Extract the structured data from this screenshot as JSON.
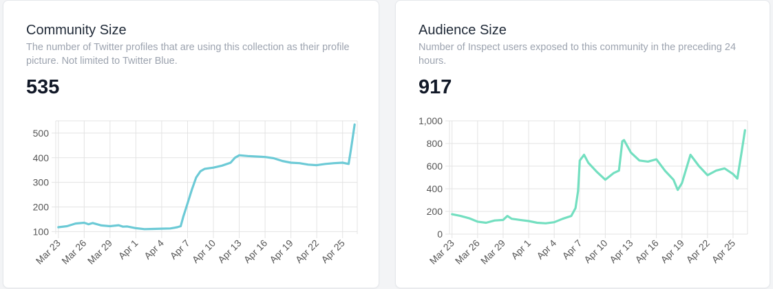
{
  "cards": [
    {
      "title": "Community Size",
      "subtitle": "The number of Twitter profiles that are using this collection as their profile picture. Not limited to Twitter Blue.",
      "value": "535"
    },
    {
      "title": "Audience Size",
      "subtitle": "Number of Inspect users exposed to this community in the preceding 24 hours.",
      "value": "917"
    }
  ],
  "chart_data": [
    {
      "type": "line",
      "title": "Community Size",
      "color": "#6ccad6",
      "xlabel": "",
      "ylabel": "",
      "x_ticks": [
        "Mar 23",
        "Mar 26",
        "Mar 29",
        "Apr 1",
        "Apr 4",
        "Apr 7",
        "Apr 10",
        "Apr 13",
        "Apr 16",
        "Apr 19",
        "Apr 22",
        "Apr 25"
      ],
      "y_ticks": [
        "100",
        "200",
        "300",
        "400",
        "500"
      ],
      "y_tick_values": [
        100,
        200,
        300,
        400,
        500
      ],
      "ylim": [
        90,
        550
      ],
      "xlim": [
        -0.3,
        34.7
      ],
      "grid": true,
      "series": [
        {
          "name": "Community Size",
          "x": [
            0,
            1,
            2,
            3,
            3.5,
            4,
            5,
            6,
            7,
            7.5,
            8,
            9,
            10,
            11,
            12,
            13,
            13.8,
            14.2,
            14.5,
            15,
            15.5,
            16,
            16.5,
            17,
            18,
            19,
            20,
            20.5,
            21,
            22,
            23,
            24,
            25,
            26,
            27,
            28,
            29,
            30,
            31,
            32,
            33,
            33.7,
            34,
            34.4
          ],
          "y": [
            118,
            122,
            133,
            136,
            130,
            135,
            125,
            122,
            126,
            120,
            121,
            114,
            110,
            111,
            112,
            113,
            118,
            122,
            160,
            215,
            270,
            320,
            345,
            355,
            360,
            368,
            380,
            400,
            410,
            407,
            405,
            403,
            398,
            387,
            380,
            378,
            372,
            370,
            375,
            378,
            380,
            375,
            440,
            535
          ]
        }
      ]
    },
    {
      "type": "line",
      "title": "Audience Size",
      "color": "#73dfc0",
      "xlabel": "",
      "ylabel": "",
      "x_ticks": [
        "Mar 23",
        "Mar 26",
        "Mar 29",
        "Apr 1",
        "Apr 4",
        "Apr 7",
        "Apr 10",
        "Apr 13",
        "Apr 16",
        "Apr 19",
        "Apr 22",
        "Apr 25"
      ],
      "y_ticks": [
        "0",
        "200",
        "400",
        "600",
        "800",
        "1,000"
      ],
      "y_tick_values": [
        0,
        200,
        400,
        600,
        800,
        1000
      ],
      "ylim": [
        0,
        1000
      ],
      "xlim": [
        -0.3,
        34.7
      ],
      "grid": true,
      "series": [
        {
          "name": "Audience Size",
          "x": [
            0,
            1,
            2,
            3,
            4,
            5,
            6,
            6.5,
            7,
            8,
            9,
            10,
            11,
            12,
            13,
            14,
            14.5,
            14.8,
            15,
            15.5,
            16,
            17,
            18,
            19,
            19.6,
            20,
            20.2,
            21,
            22,
            23,
            24,
            25,
            26,
            26.5,
            27,
            28,
            29,
            30,
            31,
            32,
            33,
            33.5,
            34,
            34.4
          ],
          "y": [
            175,
            160,
            140,
            110,
            100,
            120,
            125,
            160,
            135,
            125,
            115,
            100,
            95,
            105,
            135,
            160,
            230,
            380,
            650,
            700,
            630,
            550,
            480,
            540,
            560,
            820,
            830,
            720,
            650,
            640,
            660,
            560,
            480,
            390,
            450,
            700,
            600,
            520,
            560,
            580,
            530,
            490,
            720,
            917
          ]
        }
      ]
    }
  ]
}
